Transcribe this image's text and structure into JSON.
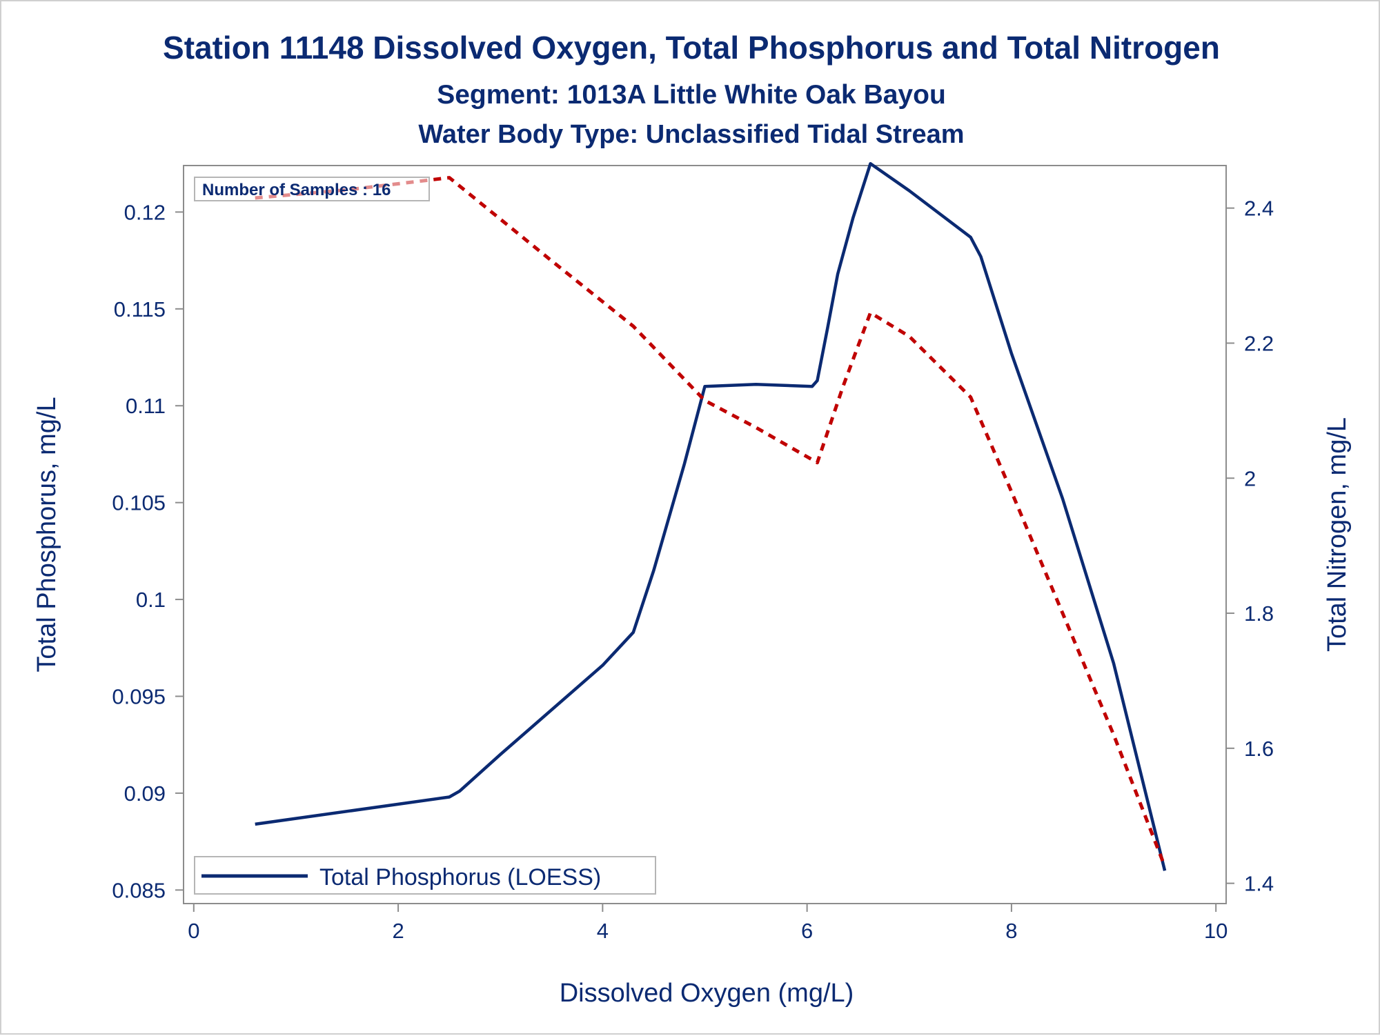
{
  "chart_data": {
    "type": "line",
    "title": "Station 11148  Dissolved Oxygen, Total Phosphorus and Total Nitrogen",
    "subtitle": "Segment: 1013A  Little White Oak Bayou",
    "subtitle2": "Water Body Type: Unclassified Tidal Stream",
    "xlabel": "Dissolved Oxygen (mg/L)",
    "ylabel": "Total Phosphorus, mg/L",
    "y2label": "Total Nitrogen, mg/L",
    "xlim": [
      -0.1,
      10.1
    ],
    "ylim": [
      0.0843,
      0.1224
    ],
    "y2lim": [
      1.37,
      2.463
    ],
    "x_ticks": [
      "0",
      "2",
      "4",
      "6",
      "8",
      "10"
    ],
    "x_tick_values": [
      0,
      2,
      4,
      6,
      8,
      10
    ],
    "y_ticks": [
      "0.085",
      "0.09",
      "0.095",
      "0.1",
      "0.105",
      "0.11",
      "0.115",
      "0.12"
    ],
    "y_tick_values": [
      0.085,
      0.09,
      0.095,
      0.1,
      0.105,
      0.11,
      0.115,
      0.12
    ],
    "y2_ticks": [
      "1.4",
      "1.6",
      "1.8",
      "2",
      "2.2",
      "2.4"
    ],
    "y2_tick_values": [
      1.4,
      1.6,
      1.8,
      2.0,
      2.2,
      2.4
    ],
    "annotation": "Number of Samples : 16",
    "grid": false,
    "legend_position": "bottom-left",
    "series": [
      {
        "name": "Total Phosphorus (LOESS)",
        "axis": "left",
        "style": "solid",
        "color": "#0b2a72",
        "x": [
          0.6,
          2.5,
          2.6,
          3.0,
          3.5,
          4.0,
          4.3,
          4.5,
          4.8,
          5.0,
          5.5,
          6.05,
          6.1,
          6.2,
          6.3,
          6.45,
          6.62,
          7.0,
          7.6,
          7.7,
          8.0,
          8.5,
          9.0,
          9.5
        ],
        "y": [
          0.0884,
          0.0898,
          0.0901,
          0.092,
          0.0943,
          0.0966,
          0.0983,
          0.1015,
          0.107,
          0.111,
          0.1111,
          0.111,
          0.1113,
          0.114,
          0.1168,
          0.1197,
          0.1225,
          0.1211,
          0.1187,
          0.1177,
          0.1127,
          0.1052,
          0.0967,
          0.086
        ]
      },
      {
        "name": "Total Nitrogen",
        "axis": "right",
        "style": "dashed",
        "color": "#c00000",
        "x": [
          0.6,
          1.5,
          2.5,
          3.5,
          4.3,
          5.0,
          5.5,
          6.1,
          6.35,
          6.62,
          7.0,
          7.6,
          8.0,
          8.5,
          9.0,
          9.5
        ],
        "y": [
          2.415,
          2.427,
          2.445,
          2.322,
          2.225,
          2.115,
          2.075,
          2.023,
          2.135,
          2.245,
          2.21,
          2.12,
          1.98,
          1.8,
          1.62,
          1.425
        ]
      }
    ]
  }
}
